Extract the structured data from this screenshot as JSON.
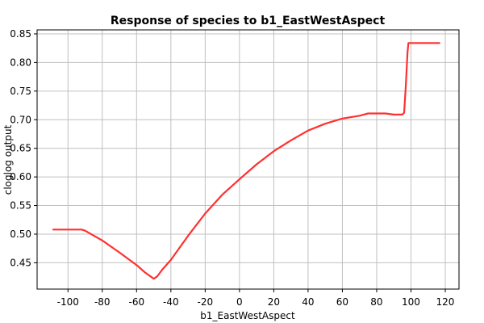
{
  "chart_data": {
    "type": "line",
    "title": "Response of species to b1_EastWestAspect",
    "xlabel": "b1_EastWestAspect",
    "ylabel": "cloglog output",
    "xlim": [
      -118,
      128
    ],
    "ylim": [
      0.404,
      0.857
    ],
    "x_ticks": [
      -100,
      -80,
      -60,
      -40,
      -20,
      0,
      20,
      40,
      60,
      80,
      100,
      120
    ],
    "y_ticks": [
      0.45,
      0.5,
      0.55,
      0.6,
      0.65,
      0.7,
      0.75,
      0.8,
      0.85
    ],
    "grid": true,
    "line_color": "#ff3030",
    "series": [
      {
        "x": [
          -109,
          -92,
          -90,
          -80,
          -70,
          -60,
          -55,
          -50,
          -48,
          -45,
          -40,
          -30,
          -20,
          -10,
          0,
          10,
          20,
          30,
          40,
          50,
          60,
          70,
          75,
          80,
          85,
          90,
          95,
          96,
          97,
          98,
          98.5,
          100,
          110,
          117
        ],
        "y": [
          0.508,
          0.508,
          0.506,
          0.489,
          0.468,
          0.446,
          0.433,
          0.422,
          0.426,
          0.438,
          0.455,
          0.497,
          0.536,
          0.569,
          0.596,
          0.622,
          0.645,
          0.664,
          0.681,
          0.693,
          0.702,
          0.707,
          0.711,
          0.711,
          0.711,
          0.709,
          0.709,
          0.712,
          0.76,
          0.818,
          0.834,
          0.834,
          0.834,
          0.834
        ]
      }
    ]
  }
}
